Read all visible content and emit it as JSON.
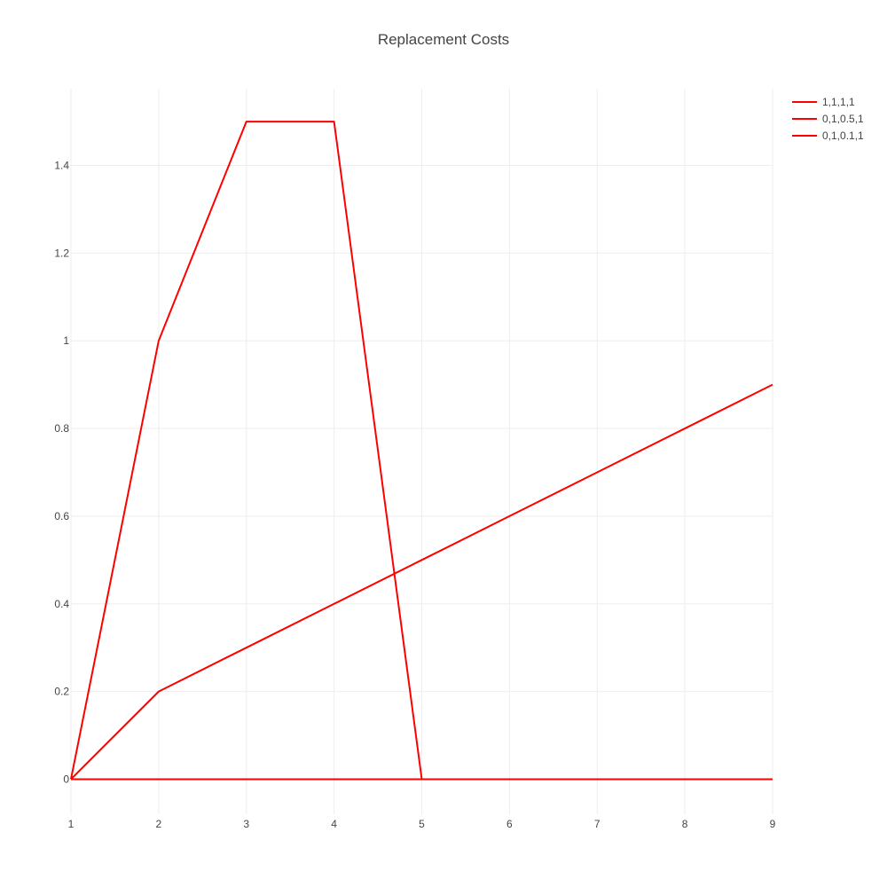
{
  "chart_data": {
    "type": "line",
    "title": "Replacement Costs",
    "xlabel": "",
    "ylabel": "",
    "xlim": [
      1,
      9
    ],
    "ylim": [
      -0.08,
      1.575
    ],
    "x_ticks": [
      1,
      2,
      3,
      4,
      5,
      6,
      7,
      8,
      9
    ],
    "x_tick_labels": [
      "1",
      "2",
      "3",
      "4",
      "5",
      "6",
      "7",
      "8",
      "9"
    ],
    "y_ticks": [
      0,
      0.2,
      0.4,
      0.6,
      0.8,
      1,
      1.2,
      1.4
    ],
    "y_tick_labels": [
      "0",
      "0.2",
      "0.4",
      "0.6",
      "0.8",
      "1",
      "1.2",
      "1.4"
    ],
    "grid": true,
    "legend_position": "top-right",
    "series": [
      {
        "name": "1,1,1,1",
        "color": "#ff0000",
        "x": [
          1,
          2,
          3,
          4,
          5,
          6,
          7,
          8,
          9
        ],
        "y": [
          0,
          1,
          1.5,
          1.5,
          0,
          0,
          0,
          0,
          0
        ]
      },
      {
        "name": "0,1,0.5,1",
        "color": "#ff0000",
        "x": [
          1,
          2,
          3,
          4,
          5,
          6,
          7,
          8,
          9
        ],
        "y": [
          0,
          0,
          0,
          0,
          0,
          0,
          0,
          0,
          0
        ]
      },
      {
        "name": "0,1,0.1,1",
        "color": "#ff0000",
        "x": [
          1,
          2,
          3,
          4,
          5,
          6,
          7,
          8,
          9
        ],
        "y": [
          0,
          0.2,
          0.3,
          0.4,
          0.5,
          0.6,
          0.7,
          0.8,
          0.9
        ]
      }
    ]
  }
}
